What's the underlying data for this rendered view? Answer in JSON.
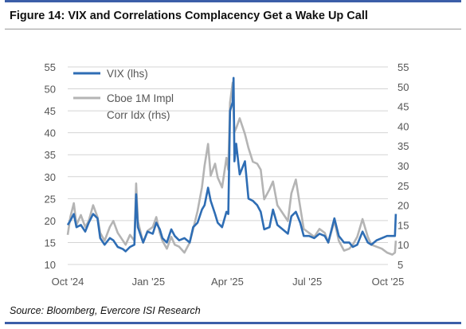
{
  "title": "Figure 14: VIX and Correlations Complacency Get a Wake Up Call",
  "source": "Source: Bloomberg, Evercore ISI Research",
  "colors": {
    "vix": "#2e6db4",
    "corr": "#b4b4b4",
    "rule": "#3b5ea8"
  },
  "chart_data": {
    "type": "line",
    "x_tick_labels": [
      "Oct '24",
      "Jan '25",
      "Apr '25",
      "Jul '25",
      "Oct '25"
    ],
    "x_tick_dates": [
      "2024-10-01",
      "2025-01-01",
      "2025-04-01",
      "2025-07-01",
      "2025-10-01"
    ],
    "y_left": {
      "ticks": [
        10,
        15,
        20,
        25,
        30,
        35,
        40,
        45,
        50,
        55
      ],
      "range": [
        10,
        55
      ]
    },
    "y_right": {
      "ticks": [
        5,
        10,
        15,
        20,
        25,
        30,
        35,
        40,
        45,
        50,
        55
      ],
      "range": [
        5,
        55
      ]
    },
    "legend": {
      "placement": "top-left",
      "vix_label": "VIX (lhs)",
      "corr_label_line1": "Cboe 1M Impl",
      "corr_label_line2": "Corr Idx (rhs)"
    },
    "series": [
      {
        "name": "VIX (lhs)",
        "axis": "left",
        "points": [
          [
            "2024-10-01",
            19
          ],
          [
            "2024-10-04",
            20
          ],
          [
            "2024-10-08",
            21.5
          ],
          [
            "2024-10-11",
            18.5
          ],
          [
            "2024-10-16",
            19
          ],
          [
            "2024-10-21",
            17.5
          ],
          [
            "2024-10-25",
            19.5
          ],
          [
            "2024-10-30",
            21.5
          ],
          [
            "2024-11-04",
            20.5
          ],
          [
            "2024-11-07",
            16
          ],
          [
            "2024-11-12",
            14.5
          ],
          [
            "2024-11-18",
            16
          ],
          [
            "2024-11-22",
            15.5
          ],
          [
            "2024-11-27",
            14
          ],
          [
            "2024-12-03",
            13.5
          ],
          [
            "2024-12-06",
            13
          ],
          [
            "2024-12-11",
            14
          ],
          [
            "2024-12-16",
            14.5
          ],
          [
            "2024-12-18",
            26
          ],
          [
            "2024-12-20",
            18.5
          ],
          [
            "2024-12-26",
            15
          ],
          [
            "2024-12-31",
            17.5
          ],
          [
            "2025-01-06",
            17
          ],
          [
            "2025-01-10",
            19.5
          ],
          [
            "2025-01-14",
            18
          ],
          [
            "2025-01-17",
            16
          ],
          [
            "2025-01-22",
            15
          ],
          [
            "2025-01-27",
            18
          ],
          [
            "2025-01-31",
            16.5
          ],
          [
            "2025-02-05",
            15.5
          ],
          [
            "2025-02-11",
            16
          ],
          [
            "2025-02-17",
            15
          ],
          [
            "2025-02-21",
            18.5
          ],
          [
            "2025-02-26",
            19.5
          ],
          [
            "2025-03-03",
            22.5
          ],
          [
            "2025-03-06",
            23.5
          ],
          [
            "2025-03-10",
            27.5
          ],
          [
            "2025-03-13",
            24.5
          ],
          [
            "2025-03-18",
            21.5
          ],
          [
            "2025-03-21",
            19.5
          ],
          [
            "2025-03-26",
            18.5
          ],
          [
            "2025-03-31",
            22
          ],
          [
            "2025-04-02",
            21.5
          ],
          [
            "2025-04-04",
            45
          ],
          [
            "2025-04-07",
            47
          ],
          [
            "2025-04-08",
            52.5
          ],
          [
            "2025-04-09",
            33.5
          ],
          [
            "2025-04-11",
            37.5
          ],
          [
            "2025-04-15",
            30.5
          ],
          [
            "2025-04-21",
            33.5
          ],
          [
            "2025-04-25",
            25
          ],
          [
            "2025-04-30",
            24.5
          ],
          [
            "2025-05-05",
            23.5
          ],
          [
            "2025-05-09",
            22
          ],
          [
            "2025-05-13",
            18
          ],
          [
            "2025-05-19",
            18.5
          ],
          [
            "2025-05-23",
            22.5
          ],
          [
            "2025-05-28",
            19
          ],
          [
            "2025-06-03",
            18
          ],
          [
            "2025-06-09",
            17
          ],
          [
            "2025-06-13",
            21
          ],
          [
            "2025-06-18",
            22
          ],
          [
            "2025-06-23",
            19.5
          ],
          [
            "2025-06-27",
            16.5
          ],
          [
            "2025-07-03",
            16.5
          ],
          [
            "2025-07-09",
            16
          ],
          [
            "2025-07-15",
            17
          ],
          [
            "2025-07-21",
            16.5
          ],
          [
            "2025-07-25",
            15
          ],
          [
            "2025-08-01",
            20.5
          ],
          [
            "2025-08-06",
            16.5
          ],
          [
            "2025-08-12",
            15
          ],
          [
            "2025-08-18",
            15
          ],
          [
            "2025-08-22",
            14
          ],
          [
            "2025-08-27",
            14.5
          ],
          [
            "2025-09-02",
            17.5
          ],
          [
            "2025-09-08",
            15
          ],
          [
            "2025-09-12",
            14.5
          ],
          [
            "2025-09-18",
            15.5
          ],
          [
            "2025-09-24",
            16
          ],
          [
            "2025-09-30",
            16.5
          ],
          [
            "2025-10-06",
            16.5
          ],
          [
            "2025-10-09",
            16.5
          ],
          [
            "2025-10-10",
            21.5
          ]
        ]
      },
      {
        "name": "Cboe 1M Impl Corr Idx (rhs)",
        "axis": "right",
        "points": [
          [
            "2024-10-01",
            12.5
          ],
          [
            "2024-10-04",
            17
          ],
          [
            "2024-10-08",
            20.5
          ],
          [
            "2024-10-11",
            15
          ],
          [
            "2024-10-16",
            17.5
          ],
          [
            "2024-10-21",
            14.5
          ],
          [
            "2024-10-25",
            16
          ],
          [
            "2024-10-30",
            20
          ],
          [
            "2024-11-04",
            17
          ],
          [
            "2024-11-07",
            13
          ],
          [
            "2024-11-12",
            11
          ],
          [
            "2024-11-18",
            14.5
          ],
          [
            "2024-11-22",
            16
          ],
          [
            "2024-11-27",
            13
          ],
          [
            "2024-12-03",
            11
          ],
          [
            "2024-12-06",
            10
          ],
          [
            "2024-12-11",
            12.5
          ],
          [
            "2024-12-16",
            11
          ],
          [
            "2024-12-18",
            25.5
          ],
          [
            "2024-12-20",
            16
          ],
          [
            "2024-12-26",
            10.5
          ],
          [
            "2024-12-31",
            13.5
          ],
          [
            "2025-01-06",
            14.5
          ],
          [
            "2025-01-10",
            17
          ],
          [
            "2025-01-14",
            13
          ],
          [
            "2025-01-17",
            11
          ],
          [
            "2025-01-22",
            9
          ],
          [
            "2025-01-27",
            12
          ],
          [
            "2025-01-31",
            10
          ],
          [
            "2025-02-05",
            9.5
          ],
          [
            "2025-02-11",
            8
          ],
          [
            "2025-02-17",
            10.5
          ],
          [
            "2025-02-21",
            14
          ],
          [
            "2025-02-26",
            18.5
          ],
          [
            "2025-03-03",
            24.5
          ],
          [
            "2025-03-06",
            30
          ],
          [
            "2025-03-10",
            35.5
          ],
          [
            "2025-03-13",
            27.5
          ],
          [
            "2025-03-18",
            30.5
          ],
          [
            "2025-03-21",
            27
          ],
          [
            "2025-03-26",
            24.5
          ],
          [
            "2025-03-31",
            32
          ],
          [
            "2025-04-02",
            29
          ],
          [
            "2025-04-04",
            46
          ],
          [
            "2025-04-07",
            51
          ],
          [
            "2025-04-08",
            44
          ],
          [
            "2025-04-09",
            38.5
          ],
          [
            "2025-04-11",
            39.5
          ],
          [
            "2025-04-15",
            42
          ],
          [
            "2025-04-21",
            38
          ],
          [
            "2025-04-25",
            34.5
          ],
          [
            "2025-04-30",
            31
          ],
          [
            "2025-05-05",
            30.5
          ],
          [
            "2025-05-09",
            29
          ],
          [
            "2025-05-13",
            21.5
          ],
          [
            "2025-05-19",
            24
          ],
          [
            "2025-05-23",
            26
          ],
          [
            "2025-05-28",
            20
          ],
          [
            "2025-06-03",
            18
          ],
          [
            "2025-06-09",
            16
          ],
          [
            "2025-06-13",
            23
          ],
          [
            "2025-06-18",
            26.5
          ],
          [
            "2025-06-23",
            19.5
          ],
          [
            "2025-06-27",
            14
          ],
          [
            "2025-07-03",
            13
          ],
          [
            "2025-07-09",
            12
          ],
          [
            "2025-07-15",
            14
          ],
          [
            "2025-07-21",
            13
          ],
          [
            "2025-07-25",
            10.5
          ],
          [
            "2025-08-01",
            16
          ],
          [
            "2025-08-06",
            11
          ],
          [
            "2025-08-12",
            8.5
          ],
          [
            "2025-08-18",
            9
          ],
          [
            "2025-08-22",
            10
          ],
          [
            "2025-08-27",
            12
          ],
          [
            "2025-09-02",
            16.5
          ],
          [
            "2025-09-08",
            12
          ],
          [
            "2025-09-12",
            10
          ],
          [
            "2025-09-18",
            9.5
          ],
          [
            "2025-09-24",
            9
          ],
          [
            "2025-09-30",
            8
          ],
          [
            "2025-10-06",
            7.5
          ],
          [
            "2025-10-09",
            8
          ],
          [
            "2025-10-10",
            11
          ]
        ]
      }
    ]
  }
}
